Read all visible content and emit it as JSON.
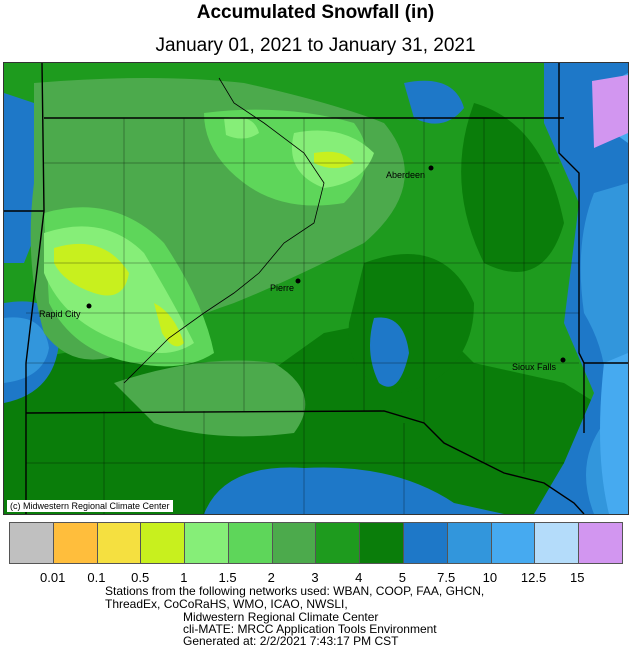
{
  "title": "Accumulated Snowfall (in)",
  "subtitle": "January 01, 2021 to January 31, 2021",
  "copyright": "(c) Midwestern Regional Climate Center",
  "cities": [
    {
      "name": "Aberdeen"
    },
    {
      "name": "Pierre"
    },
    {
      "name": "Rapid City"
    },
    {
      "name": "Sioux Falls"
    }
  ],
  "legend": {
    "colors": [
      "#c0c0c0",
      "#ffbe3c",
      "#f5e040",
      "#c8f01e",
      "#86ee78",
      "#5ed65a",
      "#4caa4c",
      "#1e9b1e",
      "#0a7d0a",
      "#1e78c8",
      "#3296dc",
      "#46aaf0",
      "#b4dcfa",
      "#d296f0"
    ],
    "labels": [
      "0.01",
      "0.1",
      "0.5",
      "1",
      "1.5",
      "2",
      "3",
      "4",
      "5",
      "7.5",
      "10",
      "12.5",
      "15"
    ]
  },
  "footer": {
    "line1": "Stations from the following networks used: WBAN, COOP, FAA, GHCN,",
    "line2": "ThreadEx, CoCoRaHS, WMO, ICAO, NWSLI,",
    "line3": "Midwestern Regional Climate Center",
    "line4": "cli-MATE: MRCC Application Tools Environment",
    "line5": "Generated at: 2/2/2021 7:43:17 PM CST"
  }
}
